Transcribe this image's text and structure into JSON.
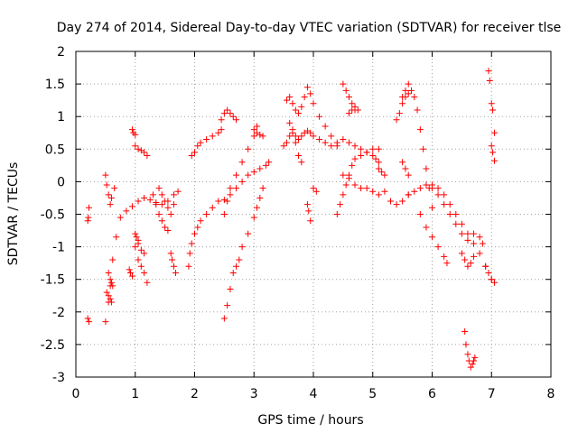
{
  "chart_data": {
    "type": "scatter",
    "title": "Day 274 of 2014, Sidereal Day-to-day VTEC variation (SDTVAR) for receiver tlse",
    "xlabel": "GPS time / hours",
    "ylabel": "SDTVAR / TECUs",
    "xlim": [
      0,
      8
    ],
    "ylim": [
      -3,
      2
    ],
    "xticks": [
      0,
      1,
      2,
      3,
      4,
      5,
      6,
      7,
      8
    ],
    "yticks": [
      -3,
      -2.5,
      -2,
      -1.5,
      -1,
      -0.5,
      0,
      0.5,
      1,
      1.5,
      2
    ],
    "xtick_labels": [
      "0",
      "1",
      "2",
      "3",
      "4",
      "5",
      "6",
      "7",
      "8"
    ],
    "ytick_labels": [
      "-3",
      "-2.5",
      "-2",
      "-1.5",
      "-1",
      "-0.5",
      "0",
      "0.5",
      "1",
      "1.5",
      "2"
    ],
    "grid": true,
    "marker": "plus",
    "color": "#ff0000",
    "series": [
      {
        "name": "s01",
        "x": [
          0.2,
          0.21,
          0.22
        ],
        "y": [
          -0.6,
          -0.55,
          -0.4
        ]
      },
      {
        "name": "s02",
        "x": [
          0.2,
          0.22
        ],
        "y": [
          -2.1,
          -2.15
        ]
      },
      {
        "name": "s03",
        "x": [
          0.5,
          0.55,
          0.58,
          0.62,
          0.68,
          0.75,
          0.85,
          0.95,
          1.05,
          1.15,
          1.25,
          1.35,
          1.45,
          1.55,
          1.65,
          1.72
        ],
        "y": [
          -2.15,
          -1.85,
          -1.6,
          -1.2,
          -0.85,
          -0.55,
          -0.45,
          -0.38,
          -0.3,
          -0.25,
          -0.28,
          -0.32,
          -0.35,
          -0.3,
          -0.2,
          -0.15
        ]
      },
      {
        "name": "s04",
        "x": [
          0.5,
          0.52,
          0.55,
          0.58,
          0.6,
          0.65
        ],
        "y": [
          0.1,
          -0.05,
          -0.2,
          -0.35,
          -0.25,
          -0.1
        ]
      },
      {
        "name": "s05",
        "x": [
          0.52,
          0.55,
          0.58,
          0.6
        ],
        "y": [
          -1.7,
          -1.75,
          -1.8,
          -1.85
        ]
      },
      {
        "name": "s06",
        "x": [
          0.55,
          0.58,
          0.6,
          0.62
        ],
        "y": [
          -1.4,
          -1.5,
          -1.55,
          -1.6
        ]
      },
      {
        "name": "s07",
        "x": [
          0.9,
          0.92,
          0.95
        ],
        "y": [
          -1.35,
          -1.4,
          -1.45
        ]
      },
      {
        "name": "s08",
        "x": [
          0.95,
          0.97,
          1.0
        ],
        "y": [
          0.8,
          0.75,
          0.72
        ]
      },
      {
        "name": "s09",
        "x": [
          1.0,
          1.05,
          1.1,
          1.15,
          1.2
        ],
        "y": [
          0.55,
          0.5,
          0.48,
          0.45,
          0.4
        ]
      },
      {
        "name": "s10",
        "x": [
          1.0,
          1.02,
          1.05
        ],
        "y": [
          -0.8,
          -0.85,
          -0.9
        ]
      },
      {
        "name": "s11",
        "x": [
          1.0,
          1.05,
          1.1,
          1.15
        ],
        "y": [
          -1.0,
          -0.95,
          -1.05,
          -1.1
        ]
      },
      {
        "name": "s12",
        "x": [
          1.05,
          1.1,
          1.15,
          1.2
        ],
        "y": [
          -1.2,
          -1.3,
          -1.4,
          -1.55
        ]
      },
      {
        "name": "s13",
        "x": [
          1.3,
          1.35,
          1.4,
          1.45,
          1.5,
          1.55,
          1.6,
          1.65
        ],
        "y": [
          -0.2,
          -0.35,
          -0.5,
          -0.6,
          -0.7,
          -0.75,
          -0.5,
          -0.35
        ]
      },
      {
        "name": "s14",
        "x": [
          1.4,
          1.45,
          1.5,
          1.55
        ],
        "y": [
          -0.1,
          -0.2,
          -0.3,
          -0.4
        ]
      },
      {
        "name": "s15",
        "x": [
          1.6,
          1.62,
          1.65,
          1.68
        ],
        "y": [
          -1.1,
          -1.2,
          -1.3,
          -1.4
        ]
      },
      {
        "name": "s16",
        "x": [
          1.9,
          1.92,
          1.95,
          2.0,
          2.05,
          2.1,
          2.2,
          2.3,
          2.4,
          2.5,
          2.6,
          2.7,
          2.8,
          2.9,
          3.0,
          3.1,
          3.2,
          3.25
        ],
        "y": [
          -1.3,
          -1.1,
          -0.95,
          -0.8,
          -0.7,
          -0.6,
          -0.5,
          -0.4,
          -0.3,
          -0.28,
          -0.2,
          -0.1,
          0.0,
          0.1,
          0.15,
          0.2,
          0.25,
          0.3
        ]
      },
      {
        "name": "s17",
        "x": [
          1.95,
          2.0,
          2.05,
          2.1,
          2.2,
          2.3,
          2.4,
          2.45
        ],
        "y": [
          0.4,
          0.45,
          0.55,
          0.6,
          0.65,
          0.7,
          0.75,
          0.8
        ]
      },
      {
        "name": "s18",
        "x": [
          2.45,
          2.5,
          2.55,
          2.6,
          2.65,
          2.7
        ],
        "y": [
          0.95,
          1.05,
          1.1,
          1.05,
          1.0,
          0.95
        ]
      },
      {
        "name": "s19",
        "x": [
          2.5,
          2.55,
          2.6,
          2.65,
          2.7,
          2.75,
          2.8,
          2.9,
          3.0,
          3.05,
          3.1,
          3.15
        ],
        "y": [
          -2.1,
          -1.9,
          -1.65,
          -1.4,
          -1.3,
          -1.2,
          -1.0,
          -0.8,
          -0.55,
          -0.4,
          -0.25,
          -0.1
        ]
      },
      {
        "name": "s20",
        "x": [
          2.5,
          2.55,
          2.6,
          2.7,
          2.8,
          2.9,
          3.0,
          3.05
        ],
        "y": [
          -0.5,
          -0.3,
          -0.1,
          0.1,
          0.3,
          0.5,
          0.7,
          0.85
        ]
      },
      {
        "name": "s21",
        "x": [
          3.0,
          3.05,
          3.1,
          3.15
        ],
        "y": [
          0.8,
          0.75,
          0.72,
          0.7
        ]
      },
      {
        "name": "s22",
        "x": [
          3.5,
          3.55,
          3.6,
          3.65,
          3.7,
          3.75,
          3.8,
          3.85,
          3.9,
          3.95,
          4.0,
          4.1,
          4.2,
          4.3,
          4.4,
          4.5,
          4.6,
          4.7,
          4.8,
          4.9,
          5.0,
          5.05,
          5.1
        ],
        "y": [
          0.55,
          0.6,
          0.7,
          0.75,
          0.7,
          0.65,
          0.7,
          0.75,
          0.78,
          0.75,
          0.7,
          0.65,
          0.6,
          0.55,
          0.6,
          0.65,
          0.6,
          0.55,
          0.5,
          0.45,
          0.4,
          0.35,
          0.3
        ]
      },
      {
        "name": "s23",
        "x": [
          3.55,
          3.6,
          3.65,
          3.7,
          3.75,
          3.8,
          3.85,
          3.9,
          3.95,
          4.0,
          4.1,
          4.2,
          4.3,
          4.4
        ],
        "y": [
          1.25,
          1.3,
          1.2,
          1.1,
          1.05,
          1.15,
          1.3,
          1.45,
          1.35,
          1.2,
          1.0,
          0.85,
          0.7,
          0.55
        ]
      },
      {
        "name": "s24",
        "x": [
          3.6,
          3.65,
          3.7,
          3.75,
          3.8
        ],
        "y": [
          0.9,
          0.8,
          0.6,
          0.4,
          0.3
        ]
      },
      {
        "name": "s25",
        "x": [
          3.9,
          3.92,
          3.95
        ],
        "y": [
          -0.35,
          -0.45,
          -0.6
        ]
      },
      {
        "name": "s26",
        "x": [
          4.0,
          4.05
        ],
        "y": [
          -0.1,
          -0.15
        ]
      },
      {
        "name": "s27",
        "x": [
          4.4,
          4.45,
          4.5,
          4.55,
          4.6,
          4.65,
          4.7,
          4.8,
          4.9,
          5.0,
          5.1
        ],
        "y": [
          -0.5,
          -0.35,
          -0.2,
          -0.05,
          0.1,
          0.25,
          0.35,
          0.4,
          0.45,
          0.5,
          0.5
        ]
      },
      {
        "name": "s28",
        "x": [
          4.5,
          4.55,
          4.6,
          4.65,
          4.7
        ],
        "y": [
          1.5,
          1.4,
          1.3,
          1.2,
          1.1
        ]
      },
      {
        "name": "s29",
        "x": [
          4.6,
          4.65,
          4.7,
          4.75
        ],
        "y": [
          1.05,
          1.1,
          1.15,
          1.1
        ]
      },
      {
        "name": "s30",
        "x": [
          4.5,
          4.6,
          4.7,
          4.8,
          4.9,
          5.0,
          5.1,
          5.2,
          5.3,
          5.4,
          5.5,
          5.6
        ],
        "y": [
          0.1,
          0.05,
          -0.05,
          -0.1,
          -0.1,
          -0.15,
          -0.2,
          -0.15,
          -0.3,
          -0.35,
          -0.3,
          -0.2
        ]
      },
      {
        "name": "s31",
        "x": [
          5.1,
          5.15,
          5.2
        ],
        "y": [
          0.2,
          0.15,
          0.1
        ]
      },
      {
        "name": "s32",
        "x": [
          5.5,
          5.55,
          5.6,
          5.65,
          5.7,
          5.75,
          5.8,
          5.85,
          5.9,
          5.95,
          6.0
        ],
        "y": [
          1.3,
          1.4,
          1.5,
          1.4,
          1.3,
          1.1,
          0.8,
          0.5,
          0.2,
          -0.1,
          -0.4
        ]
      },
      {
        "name": "s33",
        "x": [
          5.4,
          5.45,
          5.5,
          5.55,
          5.6
        ],
        "y": [
          0.95,
          1.05,
          1.2,
          1.3,
          1.35
        ]
      },
      {
        "name": "s34",
        "x": [
          5.5,
          5.55,
          5.6
        ],
        "y": [
          0.3,
          0.2,
          0.1
        ]
      },
      {
        "name": "s35",
        "x": [
          5.6,
          5.7,
          5.8,
          5.9,
          6.0,
          6.1,
          6.2,
          6.3,
          6.4,
          6.5,
          6.6,
          6.7,
          6.8,
          6.9,
          7.0
        ],
        "y": [
          -0.2,
          -0.15,
          -0.1,
          -0.05,
          -0.05,
          -0.1,
          -0.2,
          -0.35,
          -0.5,
          -0.65,
          -0.8,
          -0.95,
          -1.1,
          -1.3,
          -1.5
        ]
      },
      {
        "name": "s36",
        "x": [
          5.8,
          5.9,
          6.0,
          6.1,
          6.2,
          6.25
        ],
        "y": [
          -0.5,
          -0.7,
          -0.85,
          -1.0,
          -1.15,
          -1.25
        ]
      },
      {
        "name": "s37",
        "x": [
          6.0,
          6.1,
          6.2,
          6.3,
          6.4,
          6.5,
          6.6,
          6.7,
          6.8,
          6.85
        ],
        "y": [
          -0.1,
          -0.2,
          -0.35,
          -0.5,
          -0.65,
          -0.8,
          -0.9,
          -0.8,
          -0.85,
          -0.95
        ]
      },
      {
        "name": "s38",
        "x": [
          6.5,
          6.55,
          6.6,
          6.65,
          6.7
        ],
        "y": [
          -1.1,
          -1.2,
          -1.3,
          -1.25,
          -1.15
        ]
      },
      {
        "name": "s39",
        "x": [
          6.55,
          6.57,
          6.6,
          6.62,
          6.65,
          6.68,
          6.7,
          6.72
        ],
        "y": [
          -2.3,
          -2.5,
          -2.65,
          -2.75,
          -2.85,
          -2.8,
          -2.75,
          -2.7
        ]
      },
      {
        "name": "s40",
        "x": [
          6.95,
          6.97,
          7.0,
          7.02,
          7.05
        ],
        "y": [
          1.7,
          1.55,
          1.2,
          1.1,
          0.75
        ]
      },
      {
        "name": "s41",
        "x": [
          7.0,
          7.02,
          7.05
        ],
        "y": [
          0.55,
          0.45,
          0.32
        ]
      },
      {
        "name": "s42",
        "x": [
          6.9,
          6.95,
          7.0,
          7.05
        ],
        "y": [
          -1.3,
          -1.4,
          -1.5,
          -1.55
        ]
      }
    ]
  }
}
